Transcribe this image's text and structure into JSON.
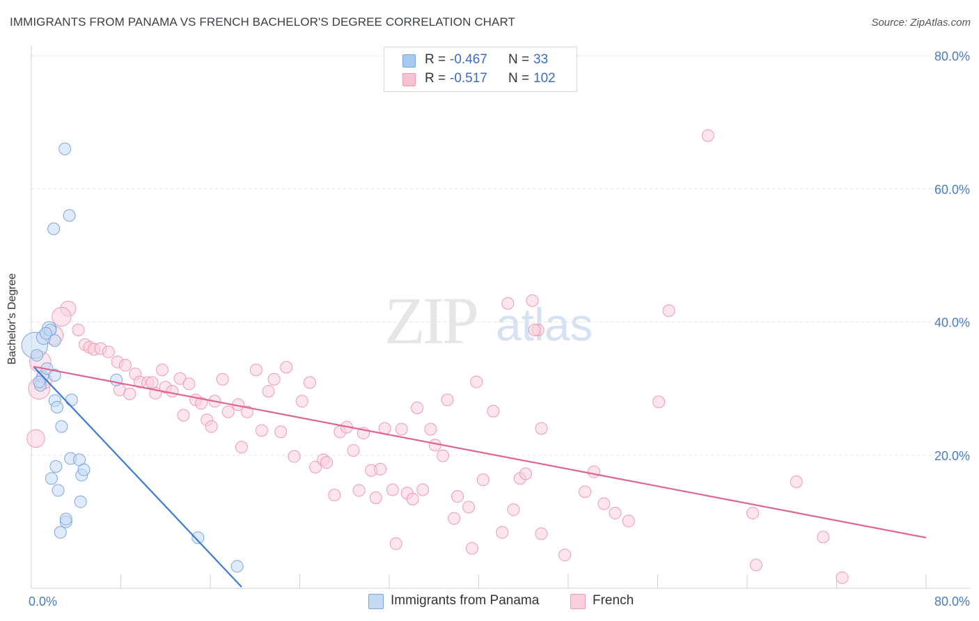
{
  "header": {
    "title": "IMMIGRANTS FROM PANAMA VS FRENCH BACHELOR'S DEGREE CORRELATION CHART",
    "source": "Source: ZipAtlas.com"
  },
  "watermark": {
    "zip": "ZIP",
    "atlas": "atlas"
  },
  "legend": {
    "rows": [
      {
        "r_label": "R =",
        "r_value": "-0.467",
        "n_label": "N =",
        "n_value": "33",
        "color": "#a9c8f0",
        "border": "#7aa6e0"
      },
      {
        "r_label": "R =",
        "r_value": "-0.517",
        "n_label": "N =",
        "n_value": "102",
        "color": "#f7c3d1",
        "border": "#ee9ab1"
      }
    ]
  },
  "bottom_legend": [
    {
      "label": "Immigrants from Panama",
      "color": "#c5daf5",
      "border": "#7aa6e0"
    },
    {
      "label": "French",
      "color": "#fad0dc",
      "border": "#ee9ab1"
    }
  ],
  "chart_data": {
    "type": "scatter",
    "title": "IMMIGRANTS FROM PANAMA VS FRENCH BACHELOR'S DEGREE CORRELATION CHART",
    "xlabel": "",
    "ylabel": "Bachelor's Degree",
    "xlim": [
      0,
      80
    ],
    "ylim": [
      0,
      80
    ],
    "x_tick_labels": [
      {
        "value": 0,
        "label": "0.0%"
      },
      {
        "value": 80,
        "label": "80.0%"
      }
    ],
    "y_tick_labels": [
      {
        "value": 20,
        "label": "20.0%"
      },
      {
        "value": 40,
        "label": "40.0%"
      },
      {
        "value": 60,
        "label": "60.0%"
      },
      {
        "value": 80,
        "label": "80.0%"
      }
    ],
    "grid": true,
    "series": [
      {
        "name": "Immigrants from Panama",
        "color": "#7aa6e0",
        "fill": "#c5daf5",
        "trend": {
          "x": [
            0.2,
            18.8
          ],
          "y": [
            33.3,
            0.2
          ],
          "color": "#3a7bd5"
        },
        "points": [
          [
            0.3,
            36.5,
            2.2
          ],
          [
            0.5,
            35.0,
            1.0
          ],
          [
            0.8,
            30.5,
            1.0
          ],
          [
            1.0,
            31.8,
            1.0
          ],
          [
            1.1,
            37.7,
            1.2
          ],
          [
            1.4,
            33.0,
            1.0
          ],
          [
            1.6,
            39.0,
            1.2
          ],
          [
            1.8,
            16.5,
            1.0
          ],
          [
            1.7,
            38.8,
            1.0
          ],
          [
            2.1,
            32.0,
            1.0
          ],
          [
            2.0,
            54.0,
            1.0
          ],
          [
            2.2,
            18.3,
            1.0
          ],
          [
            2.4,
            14.7,
            1.0
          ],
          [
            2.1,
            28.2,
            1.0
          ],
          [
            2.1,
            37.2,
            1.0
          ],
          [
            2.3,
            27.2,
            1.0
          ],
          [
            2.6,
            8.4,
            1.0
          ],
          [
            2.7,
            24.3,
            1.0
          ],
          [
            3.0,
            66.0,
            1.0
          ],
          [
            3.1,
            10.0,
            1.0
          ],
          [
            3.1,
            10.4,
            1.0
          ],
          [
            3.4,
            56.0,
            1.0
          ],
          [
            3.5,
            19.5,
            1.0
          ],
          [
            3.6,
            28.3,
            1.0
          ],
          [
            4.3,
            19.3,
            1.0
          ],
          [
            4.4,
            13.0,
            1.0
          ],
          [
            4.5,
            17.0,
            1.0
          ],
          [
            4.7,
            17.8,
            1.0
          ],
          [
            7.6,
            31.3,
            1.0
          ],
          [
            14.9,
            7.6,
            1.0
          ],
          [
            18.4,
            3.3,
            1.0
          ],
          [
            0.7,
            31.0,
            1.0
          ],
          [
            1.3,
            38.3,
            1.0
          ]
        ]
      },
      {
        "name": "French",
        "color": "#ee9ab1",
        "fill": "#fad0dc",
        "trend": {
          "x": [
            0.2,
            80.0
          ],
          "y": [
            33.3,
            7.6
          ],
          "color": "#e0648f"
        },
        "points": [
          [
            0.4,
            22.5,
            1.5
          ],
          [
            0.7,
            30.0,
            1.8
          ],
          [
            0.8,
            34.0,
            1.8
          ],
          [
            1.1,
            31.2,
            1.4
          ],
          [
            2.0,
            38.0,
            1.6
          ],
          [
            3.3,
            42.0,
            1.3
          ],
          [
            2.7,
            40.8,
            1.6
          ],
          [
            4.2,
            38.8,
            1.0
          ],
          [
            4.8,
            36.6,
            1.0
          ],
          [
            5.2,
            36.2,
            1.0
          ],
          [
            5.6,
            35.9,
            1.0
          ],
          [
            6.2,
            36.0,
            1.0
          ],
          [
            6.9,
            35.5,
            1.0
          ],
          [
            7.9,
            29.8,
            1.0
          ],
          [
            7.7,
            34.0,
            1.0
          ],
          [
            8.4,
            33.5,
            1.0
          ],
          [
            8.8,
            29.2,
            1.0
          ],
          [
            9.3,
            32.2,
            1.0
          ],
          [
            9.7,
            31.0,
            1.0
          ],
          [
            10.4,
            30.9,
            1.0
          ],
          [
            10.8,
            30.9,
            1.0
          ],
          [
            11.1,
            29.3,
            1.0
          ],
          [
            11.7,
            32.8,
            1.0
          ],
          [
            12.0,
            30.2,
            1.0
          ],
          [
            12.6,
            29.6,
            1.0
          ],
          [
            13.3,
            31.5,
            1.0
          ],
          [
            13.6,
            26.0,
            1.0
          ],
          [
            14.1,
            30.7,
            1.0
          ],
          [
            14.7,
            28.3,
            1.0
          ],
          [
            15.2,
            27.8,
            1.0
          ],
          [
            15.7,
            25.3,
            1.0
          ],
          [
            16.4,
            28.1,
            1.0
          ],
          [
            16.1,
            24.3,
            1.0
          ],
          [
            17.1,
            31.4,
            1.0
          ],
          [
            17.6,
            26.5,
            1.0
          ],
          [
            18.5,
            27.6,
            1.0
          ],
          [
            18.8,
            21.2,
            1.0
          ],
          [
            19.3,
            26.5,
            1.0
          ],
          [
            20.1,
            32.8,
            1.0
          ],
          [
            20.6,
            23.7,
            1.0
          ],
          [
            21.2,
            29.6,
            1.0
          ],
          [
            21.7,
            31.4,
            1.0
          ],
          [
            22.3,
            23.5,
            1.0
          ],
          [
            22.8,
            33.2,
            1.0
          ],
          [
            23.5,
            19.8,
            1.0
          ],
          [
            24.2,
            28.1,
            1.0
          ],
          [
            24.9,
            30.9,
            1.0
          ],
          [
            25.4,
            18.2,
            1.0
          ],
          [
            26.1,
            19.3,
            1.0
          ],
          [
            26.4,
            18.9,
            1.0
          ],
          [
            27.1,
            14.0,
            1.0
          ],
          [
            27.6,
            23.5,
            1.0
          ],
          [
            28.2,
            24.2,
            1.0
          ],
          [
            28.8,
            20.7,
            1.0
          ],
          [
            29.3,
            14.7,
            1.0
          ],
          [
            29.7,
            23.3,
            1.0
          ],
          [
            30.4,
            17.7,
            1.0
          ],
          [
            30.8,
            13.6,
            1.0
          ],
          [
            31.2,
            17.9,
            1.0
          ],
          [
            31.6,
            24.0,
            1.0
          ],
          [
            32.3,
            14.8,
            1.0
          ],
          [
            32.6,
            6.7,
            1.0
          ],
          [
            33.1,
            23.9,
            1.0
          ],
          [
            33.6,
            14.3,
            1.0
          ],
          [
            34.1,
            13.4,
            1.0
          ],
          [
            34.5,
            27.1,
            1.0
          ],
          [
            35.0,
            14.8,
            1.0
          ],
          [
            35.7,
            23.9,
            1.0
          ],
          [
            36.1,
            21.5,
            1.0
          ],
          [
            36.8,
            19.9,
            1.0
          ],
          [
            37.2,
            28.3,
            1.0
          ],
          [
            37.8,
            10.5,
            1.0
          ],
          [
            38.1,
            13.8,
            1.0
          ],
          [
            39.1,
            12.2,
            1.0
          ],
          [
            39.4,
            6.0,
            1.0
          ],
          [
            39.8,
            31.0,
            1.0
          ],
          [
            40.4,
            16.3,
            1.0
          ],
          [
            41.3,
            26.6,
            1.0
          ],
          [
            42.1,
            8.4,
            1.0
          ],
          [
            42.6,
            42.8,
            1.0
          ],
          [
            43.1,
            11.8,
            1.0
          ],
          [
            43.7,
            16.5,
            1.0
          ],
          [
            44.2,
            17.2,
            1.0
          ],
          [
            44.8,
            43.2,
            1.0
          ],
          [
            45.3,
            38.8,
            1.0
          ],
          [
            45.6,
            8.2,
            1.0
          ],
          [
            45.6,
            24.0,
            1.0
          ],
          [
            47.7,
            5.0,
            1.0
          ],
          [
            49.5,
            14.5,
            1.0
          ],
          [
            50.3,
            17.5,
            1.0
          ],
          [
            51.2,
            12.7,
            1.0
          ],
          [
            52.2,
            11.3,
            1.0
          ],
          [
            53.4,
            10.1,
            1.0
          ],
          [
            56.1,
            28.0,
            1.0
          ],
          [
            57.0,
            41.7,
            1.0
          ],
          [
            60.5,
            68.0,
            1.0
          ],
          [
            64.5,
            11.3,
            1.0
          ],
          [
            64.8,
            3.5,
            1.0
          ],
          [
            68.4,
            16.0,
            1.0
          ],
          [
            70.8,
            7.7,
            1.0
          ],
          [
            72.5,
            1.6,
            1.0
          ],
          [
            45.0,
            38.8,
            1.0
          ]
        ]
      }
    ]
  }
}
